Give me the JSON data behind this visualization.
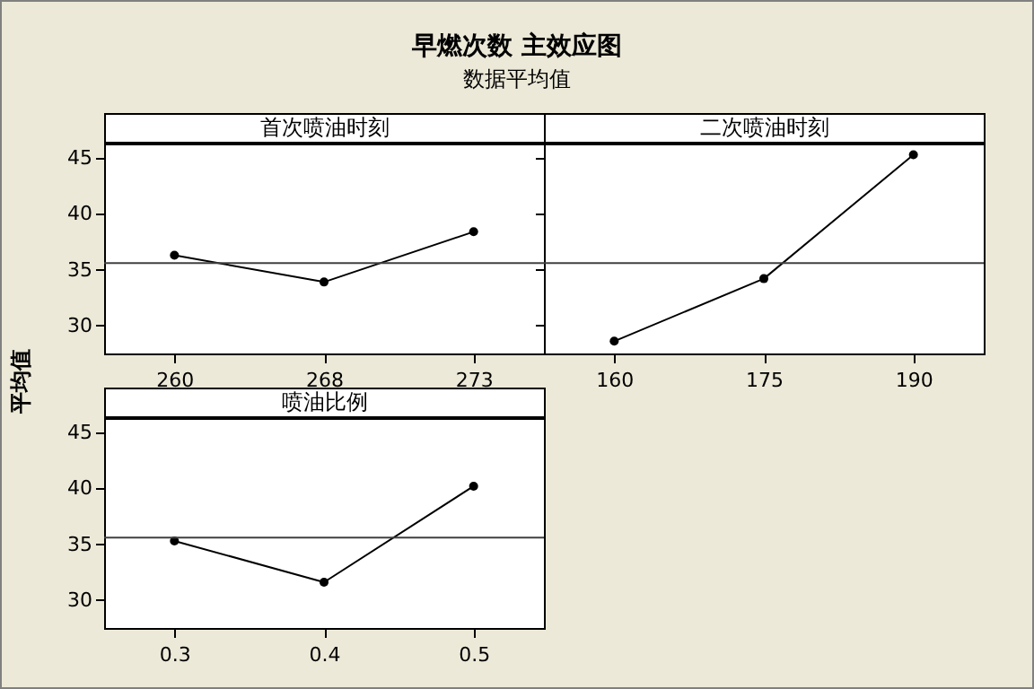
{
  "chart_data": [
    {
      "type": "other",
      "title": "早燃次数 主效应图",
      "subtitle": "数据平均值"
    },
    {
      "type": "line",
      "title": "首次喷油时刻",
      "ylabel": "平均值",
      "categories": [
        "260",
        "268",
        "273"
      ],
      "series": [
        {
          "color": "#000000",
          "values": [
            36.3,
            33.9,
            38.4
          ]
        }
      ],
      "ylim": [
        27.5,
        46.3
      ],
      "yticks": [
        30,
        35,
        40,
        45
      ],
      "ref_lines": [
        {
          "axis": "y",
          "value": 35.6,
          "color": "#404040"
        }
      ],
      "marker": "circle"
    },
    {
      "type": "line",
      "title": "二次喷油时刻",
      "categories": [
        "160",
        "175",
        "190"
      ],
      "series": [
        {
          "color": "#000000",
          "values": [
            28.6,
            34.2,
            45.3
          ]
        }
      ],
      "ylim": [
        27.5,
        46.3
      ],
      "yticks": [
        30,
        35,
        40,
        45
      ],
      "ref_lines": [
        {
          "axis": "y",
          "value": 35.6,
          "color": "#404040"
        }
      ],
      "marker": "circle",
      "tick_labels": "x"
    },
    {
      "type": "line",
      "title": "喷油比例",
      "categories": [
        "0.3",
        "0.4",
        "0.5"
      ],
      "series": [
        {
          "color": "#000000",
          "values": [
            35.3,
            31.6,
            40.2
          ]
        }
      ],
      "ylim": [
        27.5,
        46.3
      ],
      "yticks": [
        30,
        35,
        40,
        45
      ],
      "ref_lines": [
        {
          "axis": "y",
          "value": 35.6,
          "color": "#404040"
        }
      ],
      "marker": "circle"
    }
  ]
}
